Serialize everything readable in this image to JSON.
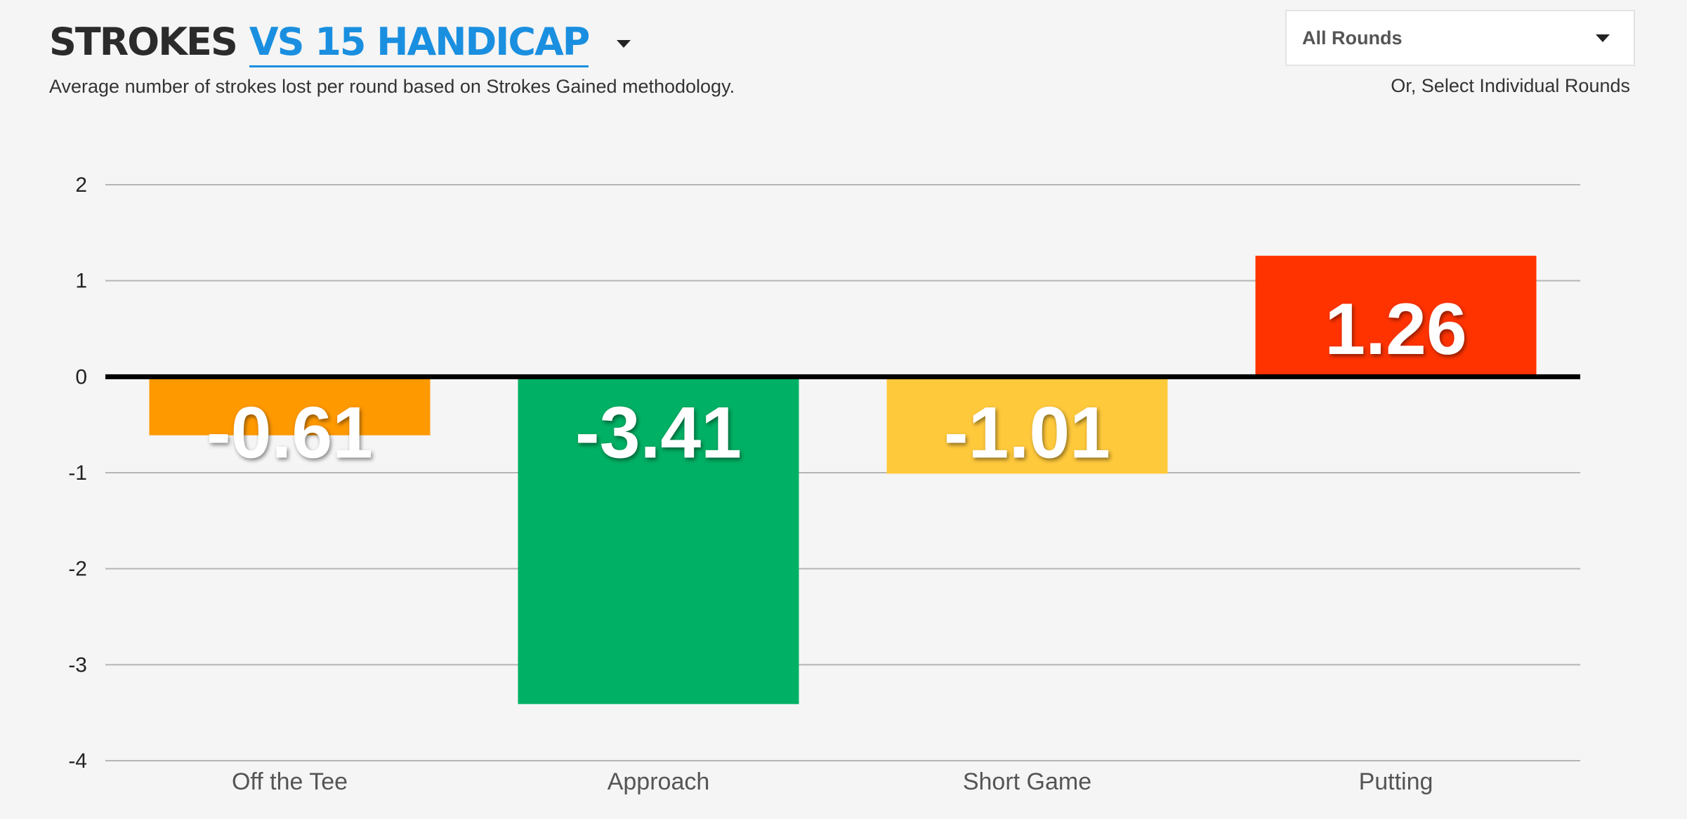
{
  "header": {
    "title_prefix": "STROKES",
    "title_comparison": "VS 15 HANDICAP",
    "subtitle": "Average number of strokes lost per round based on Strokes Gained methodology."
  },
  "round_filter": {
    "selected": "All Rounds",
    "individual_link": "Or, Select Individual Rounds"
  },
  "colors": {
    "zero_line": "#000000",
    "grid": "#b5b5b5",
    "value_label": "#ffffff"
  },
  "chart_data": {
    "type": "bar",
    "categories": [
      "Off the Tee",
      "Approach",
      "Short Game",
      "Putting"
    ],
    "values": [
      -0.61,
      -3.41,
      -1.01,
      1.26
    ],
    "value_labels": [
      "-0.61",
      "-3.41",
      "-1.01",
      "1.26"
    ],
    "bar_colors": [
      "#ff9900",
      "#00b064",
      "#ffc93c",
      "#ff3300"
    ],
    "yticks": [
      "2",
      "1",
      "0",
      "-1",
      "-2",
      "-3",
      "-4"
    ],
    "ylim": [
      -4,
      2
    ],
    "grid": true,
    "title": "",
    "xlabel": "",
    "ylabel": ""
  }
}
